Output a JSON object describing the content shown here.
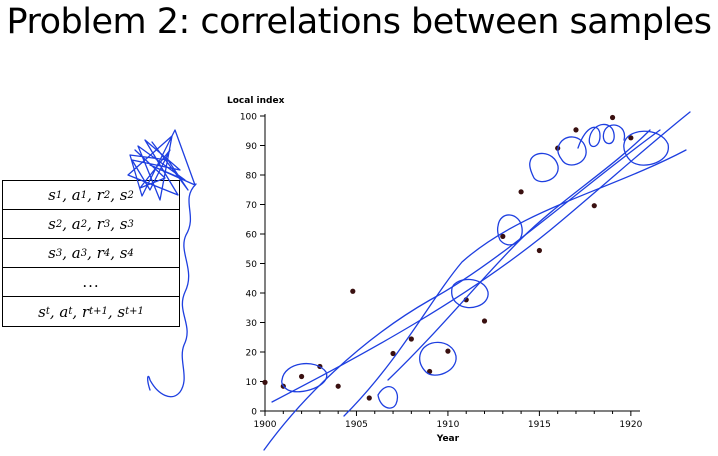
{
  "slide": {
    "title": "Problem 2: correlations between samples"
  },
  "samples_table": {
    "rows": [
      [
        [
          "s",
          "1"
        ],
        [
          ", a",
          "1"
        ],
        [
          ", r",
          "2"
        ],
        [
          ", s",
          "2"
        ]
      ],
      [
        [
          "s",
          "2"
        ],
        [
          ", a",
          "2"
        ],
        [
          ", r",
          "3"
        ],
        [
          ", s",
          "3"
        ]
      ],
      [
        [
          "s",
          "3"
        ],
        [
          ", a",
          "3"
        ],
        [
          ", r",
          "4"
        ],
        [
          ", s",
          "4"
        ]
      ],
      "...",
      [
        [
          "s",
          "t"
        ],
        [
          ", a",
          "t"
        ],
        [
          ", r",
          "t+1"
        ],
        [
          ", s",
          "t+1"
        ]
      ]
    ]
  },
  "colors": {
    "ink": "#1e3fe0",
    "point": "#3a1010",
    "axis": "#000000"
  },
  "chart_data": {
    "type": "scatter",
    "title": "",
    "ylabel": "Local index",
    "xlabel": "Year",
    "xlim": [
      1900,
      1920.5
    ],
    "ylim": [
      0,
      100
    ],
    "xticks": [
      1900,
      1905,
      1910,
      1915,
      1920
    ],
    "yticks": [
      0,
      10,
      20,
      30,
      40,
      50,
      60,
      70,
      80,
      90,
      100
    ],
    "x": [
      1900,
      1901,
      1902,
      1903,
      1904,
      1904.8,
      1905.7,
      1907,
      1908,
      1909,
      1910,
      1911,
      1912,
      1913,
      1914,
      1915,
      1916,
      1917,
      1918,
      1919,
      1920
    ],
    "y": [
      9.7,
      8.4,
      11.7,
      15.1,
      8.4,
      40.6,
      4.4,
      19.5,
      24.4,
      13.4,
      20.3,
      37.7,
      30.5,
      59.2,
      74.3,
      54.4,
      89.1,
      95.3,
      69.6,
      99.5,
      92.6
    ]
  }
}
